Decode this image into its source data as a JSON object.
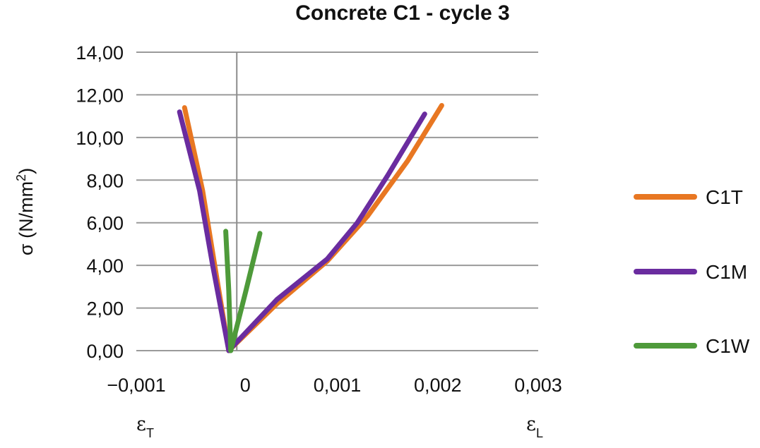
{
  "chart_data": {
    "type": "line",
    "title": "Concrete C1 - cycle 3",
    "ylabel": "σ (N/mm²)",
    "ylabel_parts": {
      "main": "σ (N/mm",
      "sup": "2",
      "close": ")"
    },
    "xlabel_left": {
      "main": "ε",
      "sub": "T"
    },
    "xlabel_right": {
      "main": "ε",
      "sub": "L"
    },
    "xlim": [
      -0.001,
      0.003
    ],
    "ylim": [
      0,
      14
    ],
    "x_ticks": [
      {
        "value": -0.001,
        "label": "−0,001"
      },
      {
        "value": 0,
        "label": "0"
      },
      {
        "value": 0.001,
        "label": "0,001"
      },
      {
        "value": 0.002,
        "label": "0,002"
      },
      {
        "value": 0.003,
        "label": "0,003"
      }
    ],
    "y_ticks": [
      {
        "value": 0,
        "label": "0,00"
      },
      {
        "value": 2,
        "label": "2,00"
      },
      {
        "value": 4,
        "label": "4,00"
      },
      {
        "value": 6,
        "label": "6,00"
      },
      {
        "value": 8,
        "label": "8,00"
      },
      {
        "value": 10,
        "label": "10,00"
      },
      {
        "value": 12,
        "label": "12,00"
      },
      {
        "value": 14,
        "label": "14,00"
      }
    ],
    "grid": true,
    "legend_position": "right",
    "series": [
      {
        "name": "C1T",
        "color": "#e87722",
        "branches": [
          {
            "x": [
              -8e-05,
              -0.00022,
              -0.00034,
              -0.00052
            ],
            "y": [
              0,
              4,
              7.5,
              11.4
            ]
          },
          {
            "x": [
              -8e-05,
              0.0004,
              0.0009,
              0.0013,
              0.0017,
              0.00204
            ],
            "y": [
              0,
              2.2,
              4.2,
              6.3,
              8.9,
              11.5
            ]
          }
        ]
      },
      {
        "name": "C1M",
        "color": "#6a2c9f",
        "branches": [
          {
            "x": [
              -8e-05,
              -0.00024,
              -0.00037,
              -0.00057
            ],
            "y": [
              0,
              4,
              7.5,
              11.2
            ]
          },
          {
            "x": [
              -8e-05,
              0.0004,
              0.0009,
              0.0012,
              0.0015,
              0.00187
            ],
            "y": [
              0,
              2.4,
              4.3,
              6.0,
              8.2,
              11.1
            ]
          }
        ]
      },
      {
        "name": "C1W",
        "color": "#4e9a3a",
        "branches": [
          {
            "x": [
              -6e-05,
              -8e-05,
              -0.00011
            ],
            "y": [
              0,
              2.8,
              5.6
            ]
          },
          {
            "x": [
              -6e-05,
              9e-05,
              0.00023
            ],
            "y": [
              0,
              2.8,
              5.5
            ]
          }
        ]
      }
    ]
  }
}
